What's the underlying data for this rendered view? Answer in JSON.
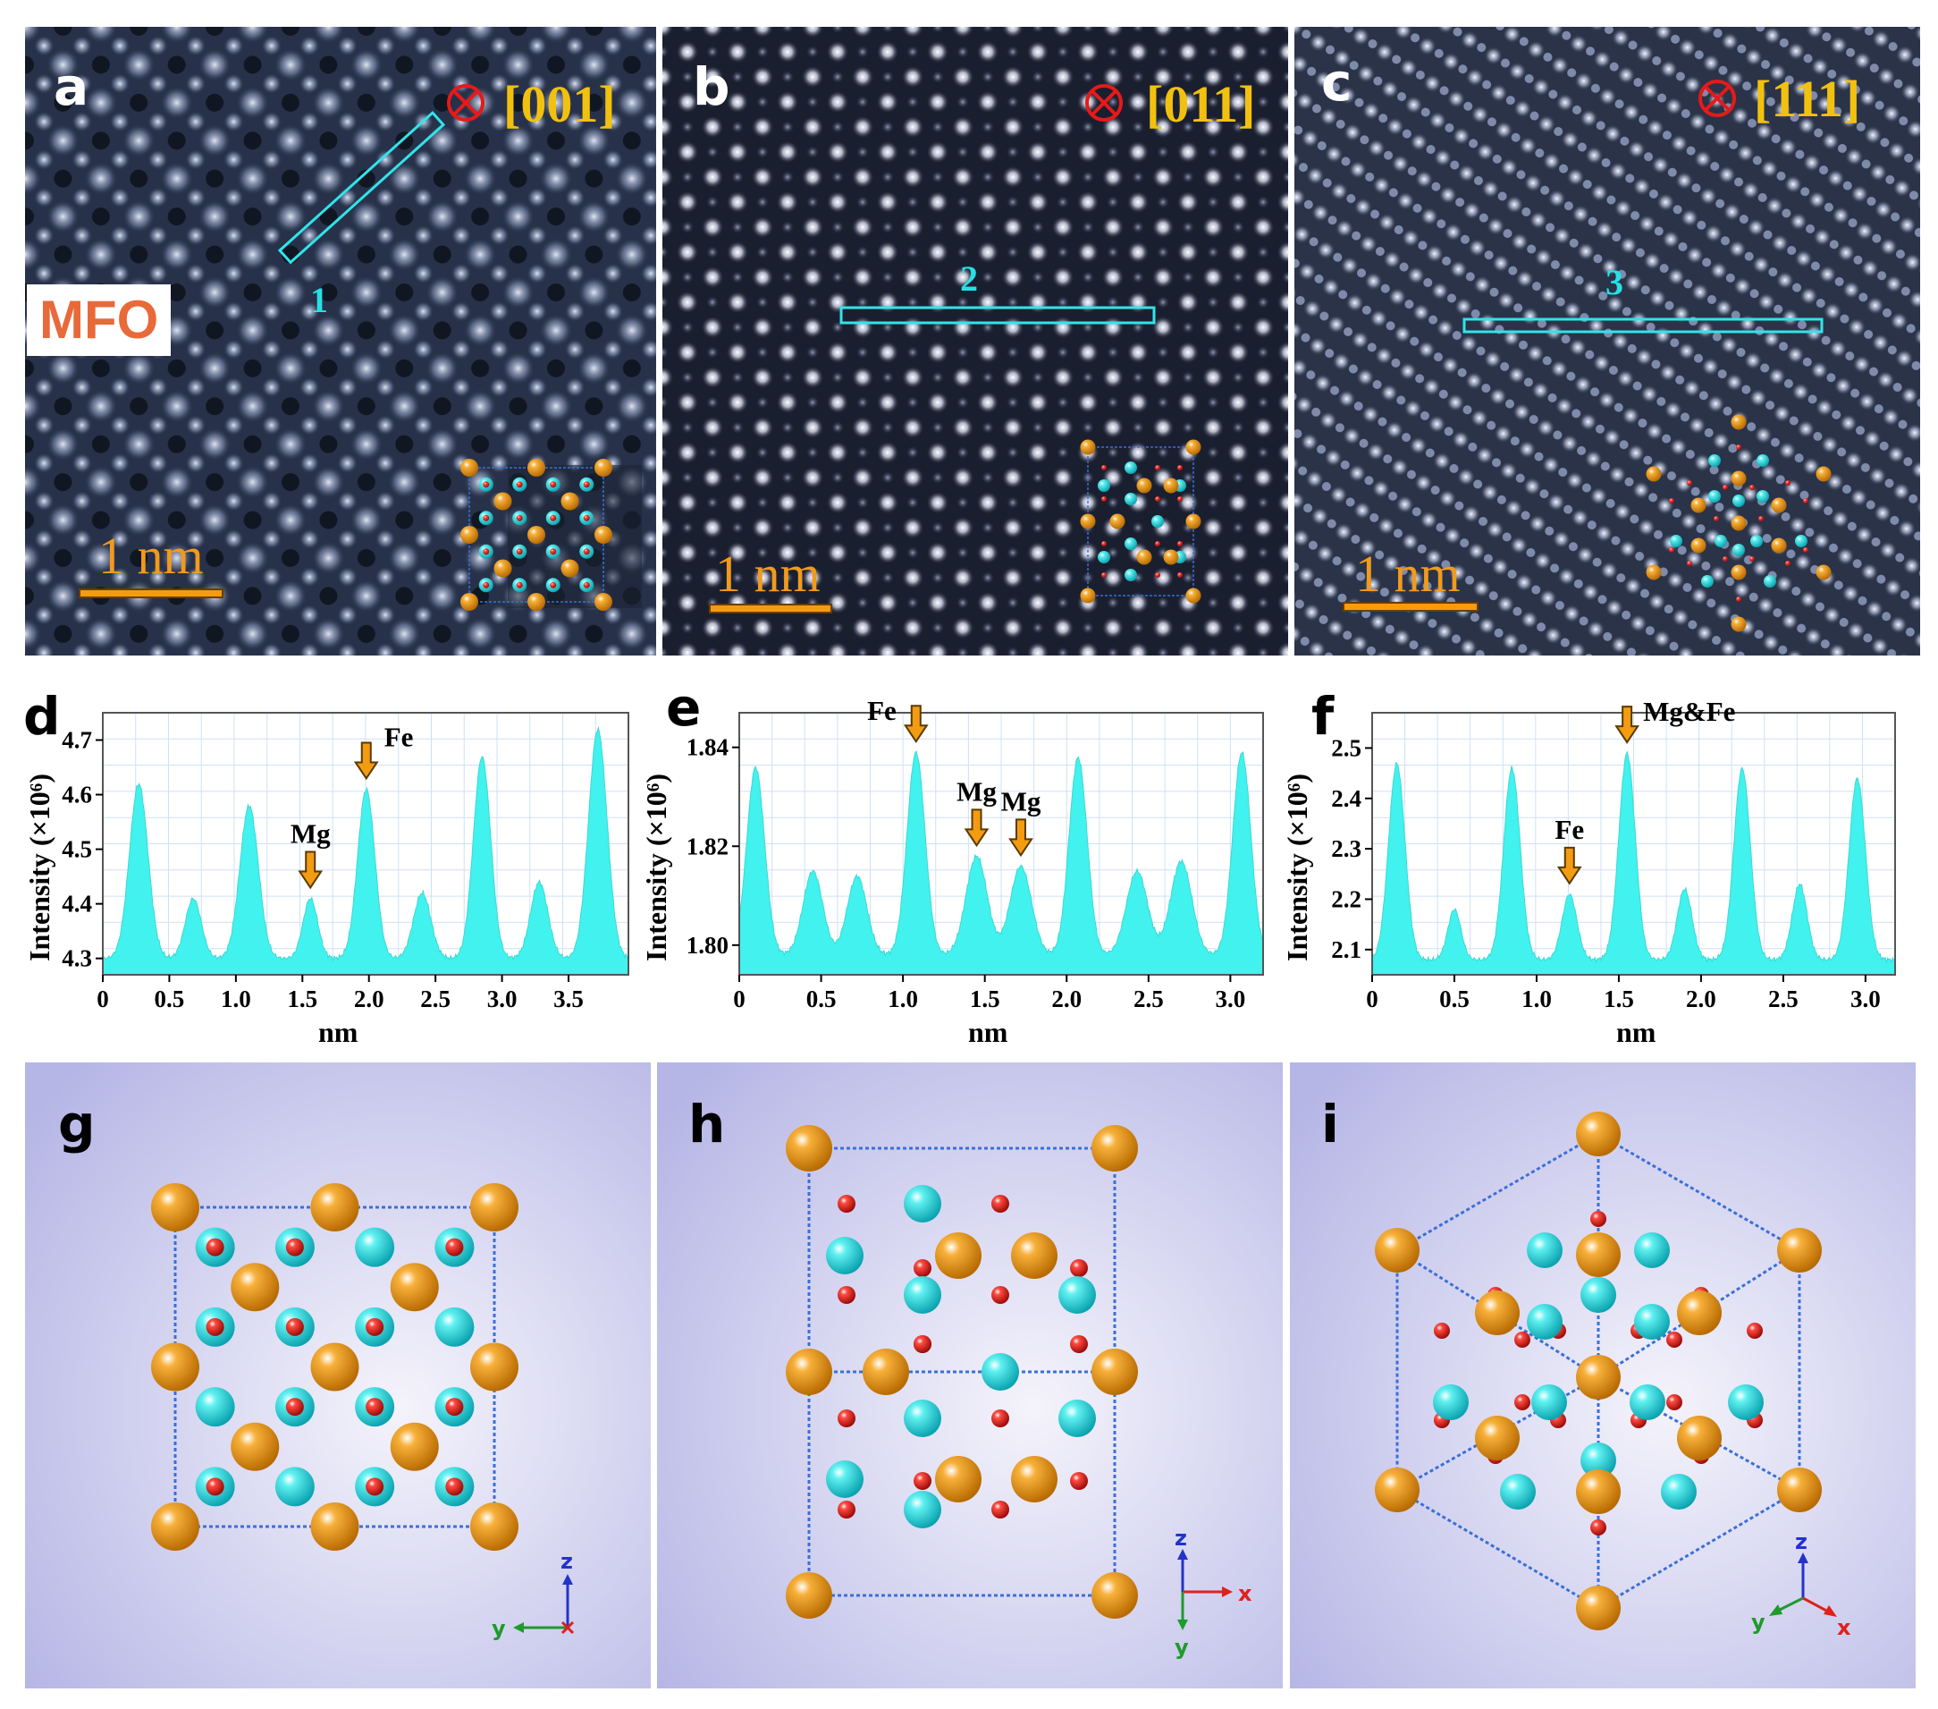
{
  "material_label": "MFO",
  "stem_panels": [
    {
      "id": "a",
      "letter": "a",
      "zone_axis": "[001]",
      "scale_bar": "1 nm",
      "line_profile": "1"
    },
    {
      "id": "b",
      "letter": "b",
      "zone_axis": "[011]",
      "scale_bar": "1 nm",
      "line_profile": "2"
    },
    {
      "id": "c",
      "letter": "c",
      "zone_axis": "[111]",
      "scale_bar": "1 nm",
      "line_profile": "3"
    }
  ],
  "model_panels": [
    {
      "id": "g",
      "letter": "g",
      "axes": [
        "z",
        "y",
        "x"
      ]
    },
    {
      "id": "h",
      "letter": "h",
      "axes": [
        "z",
        "x",
        "y"
      ]
    },
    {
      "id": "i",
      "letter": "i",
      "axes": [
        "z",
        "y",
        "x"
      ]
    }
  ],
  "colors": {
    "fe_atom": "#f39c12",
    "mg_atom": "#27d9dd",
    "o_atom": "#e0201b",
    "profile_fill": "#41f2ee",
    "cell_edge": "#3b6fd8"
  },
  "chart_data": [
    {
      "id": "d",
      "letter": "d",
      "type": "area",
      "title": "",
      "xlabel": "nm",
      "ylabel": "Intensity (×10⁶)",
      "xlim": [
        0,
        3.95
      ],
      "ylim": [
        4.27,
        4.75
      ],
      "xticks": [
        "0",
        "0.5",
        "1.0",
        "1.5",
        "2.0",
        "2.5",
        "3.0",
        "3.5"
      ],
      "yticks": [
        "4.3",
        "4.4",
        "4.5",
        "4.6",
        "4.7"
      ],
      "base": 4.3,
      "peaks": [
        [
          0.27,
          4.62,
          0.07
        ],
        [
          0.68,
          4.41,
          0.06
        ],
        [
          1.1,
          4.58,
          0.07
        ],
        [
          1.56,
          4.41,
          0.055
        ],
        [
          1.98,
          4.61,
          0.065
        ],
        [
          2.4,
          4.42,
          0.065
        ],
        [
          2.85,
          4.67,
          0.065
        ],
        [
          3.28,
          4.44,
          0.065
        ],
        [
          3.72,
          4.72,
          0.07
        ]
      ],
      "annotations": [
        {
          "text": "Mg",
          "x": 1.56,
          "y": 4.41
        },
        {
          "text": "Fe",
          "x": 1.98,
          "y": 4.61
        }
      ]
    },
    {
      "id": "e",
      "letter": "e",
      "type": "area",
      "title": "",
      "xlabel": "nm",
      "ylabel": "Intensity (×10⁶)",
      "xlim": [
        0,
        3.2
      ],
      "ylim": [
        1.794,
        1.847
      ],
      "xticks": [
        "0",
        "0.5",
        "1.0",
        "1.5",
        "2.0",
        "2.5",
        "3.0"
      ],
      "yticks": [
        "1.80",
        "1.82",
        "1.84"
      ],
      "base": 1.798,
      "peaks": [
        [
          0.1,
          1.836,
          0.055
        ],
        [
          0.45,
          1.815,
          0.06
        ],
        [
          0.72,
          1.814,
          0.06
        ],
        [
          1.08,
          1.839,
          0.055
        ],
        [
          1.45,
          1.818,
          0.065
        ],
        [
          1.72,
          1.816,
          0.065
        ],
        [
          2.07,
          1.838,
          0.055
        ],
        [
          2.43,
          1.815,
          0.065
        ],
        [
          2.7,
          1.817,
          0.065
        ],
        [
          3.07,
          1.839,
          0.055
        ]
      ],
      "annotations": [
        {
          "text": "Fe",
          "x": 1.08,
          "y": 1.839
        },
        {
          "text": "Mg",
          "x": 1.45,
          "y": 1.818
        },
        {
          "text": "Mg",
          "x": 1.72,
          "y": 1.816
        }
      ]
    },
    {
      "id": "f",
      "letter": "f",
      "type": "area",
      "title": "",
      "xlabel": "nm",
      "ylabel": "Intensity (×10⁶)",
      "xlim": [
        0,
        3.18
      ],
      "ylim": [
        2.05,
        2.57
      ],
      "xticks": [
        "0",
        "0.5",
        "1.0",
        "1.5",
        "2.0",
        "2.5",
        "3.0"
      ],
      "yticks": [
        "2.1",
        "2.2",
        "2.3",
        "2.4",
        "2.5"
      ],
      "base": 2.08,
      "peaks": [
        [
          0.15,
          2.47,
          0.05
        ],
        [
          0.5,
          2.18,
          0.04
        ],
        [
          0.85,
          2.46,
          0.05
        ],
        [
          1.2,
          2.21,
          0.045
        ],
        [
          1.55,
          2.49,
          0.05
        ],
        [
          1.9,
          2.22,
          0.045
        ],
        [
          2.25,
          2.46,
          0.05
        ],
        [
          2.6,
          2.23,
          0.045
        ],
        [
          2.95,
          2.44,
          0.05
        ]
      ],
      "annotations": [
        {
          "text": "Fe",
          "x": 1.2,
          "y": 2.21
        },
        {
          "text": "Mg&Fe",
          "x": 1.55,
          "y": 2.49
        }
      ]
    }
  ]
}
